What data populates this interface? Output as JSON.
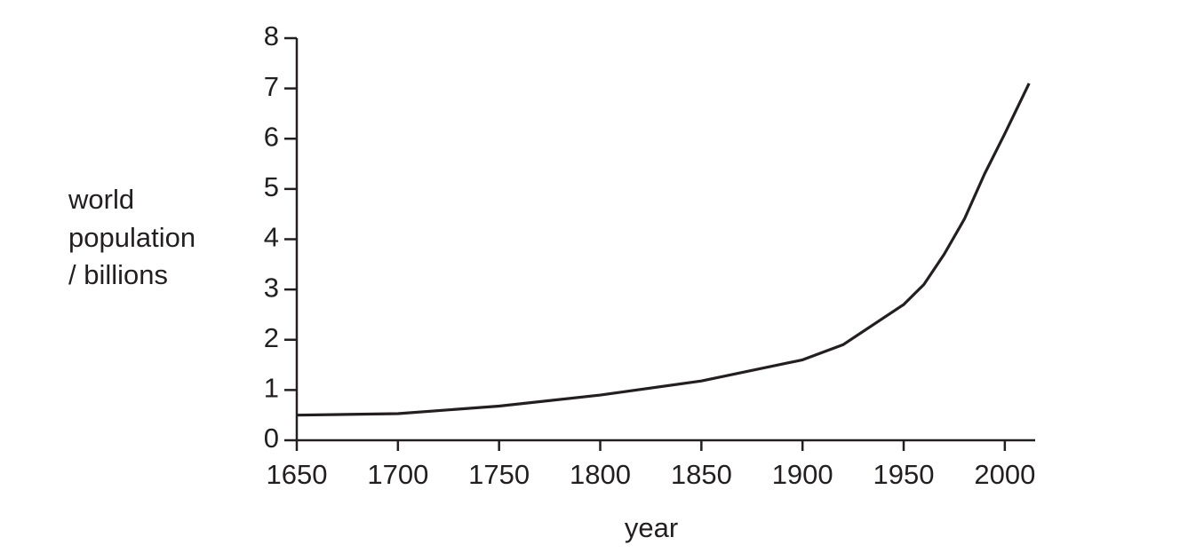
{
  "chart_data": {
    "type": "line",
    "xlabel": "year",
    "ylabel": [
      "world",
      "population",
      "/ billions"
    ],
    "x": [
      1650,
      1700,
      1750,
      1800,
      1850,
      1900,
      1920,
      1950,
      1960,
      1970,
      1980,
      1990,
      2000,
      2012
    ],
    "values": [
      0.5,
      0.53,
      0.68,
      0.9,
      1.18,
      1.6,
      1.9,
      2.7,
      3.1,
      3.7,
      4.4,
      5.3,
      6.1,
      7.1
    ],
    "color": "#231f20",
    "xlim": [
      1650,
      2015
    ],
    "xticks": [
      1650,
      1700,
      1750,
      1800,
      1850,
      1900,
      1950,
      2000
    ],
    "ylim": [
      0,
      8
    ],
    "yticks": [
      0,
      1,
      2,
      3,
      4,
      5,
      6,
      7,
      8
    ]
  }
}
